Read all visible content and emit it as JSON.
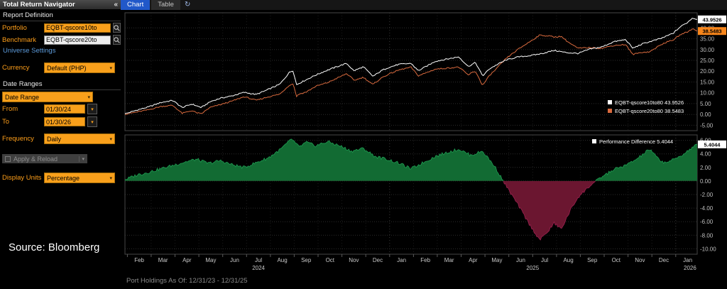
{
  "icons": {
    "collapse": "«",
    "caret_down": "▾",
    "refresh": "↻"
  },
  "sidebar": {
    "title": "Total Return Navigator",
    "report_definition_label": "Report Definition",
    "portfolio_label": "Portfolio",
    "portfolio_value": "EQBT-qscore10to",
    "benchmark_label": "Benchmark",
    "benchmark_value": "EQBT-qscore20to",
    "universe_settings_label": "Universe Settings",
    "currency_label": "Currency",
    "currency_value": "Default (PHP)",
    "date_ranges_label": "Date Ranges",
    "date_range_value": "Date Range",
    "from_label": "From",
    "from_value": "01/30/24",
    "to_label": "To",
    "to_value": "01/30/26",
    "frequency_label": "Frequency",
    "frequency_value": "Daily",
    "apply_reload_label": "Apply & Reload",
    "display_units_label": "Display Units",
    "display_units_value": "Percentage",
    "source_note": "Source: Bloomberg"
  },
  "tabs": {
    "chart": "Chart",
    "table": "Table"
  },
  "statusbar": "Port Holdings As Of: 12/31/23 - 12/31/25",
  "chart_data": {
    "type": "line",
    "x_unit": "months_since_2024-01-30",
    "x_range": [
      0,
      24
    ],
    "month_labels": [
      "Feb",
      "Mar",
      "Apr",
      "May",
      "Jun",
      "Jul",
      "Aug",
      "Sep",
      "Oct",
      "Nov",
      "Dec",
      "Jan",
      "Feb",
      "Mar",
      "Apr",
      "May",
      "Jun",
      "Jul",
      "Aug",
      "Sep",
      "Oct",
      "Nov",
      "Dec",
      "Jan"
    ],
    "year_labels": [
      {
        "label": "2024",
        "t": 5.6
      },
      {
        "label": "2025",
        "t": 17.1
      },
      {
        "label": "2026",
        "t": 23.7
      }
    ],
    "top_panel": {
      "yticks": [
        40,
        35,
        30,
        25,
        20,
        15,
        10,
        5,
        0,
        -5
      ],
      "ylim": [
        -7.5,
        47
      ],
      "series": [
        {
          "name": "EQBT-qscore10to80",
          "color": "#ffffff",
          "badge_color": "#ffffff",
          "last": 43.9526,
          "last_label": "43.9526",
          "anchors": [
            [
              0,
              0.3
            ],
            [
              0.5,
              2
            ],
            [
              1,
              3.5
            ],
            [
              1.5,
              5.5
            ],
            [
              2,
              6.5
            ],
            [
              2.4,
              3.2
            ],
            [
              2.8,
              4.8
            ],
            [
              3.2,
              3.2
            ],
            [
              3.6,
              6
            ],
            [
              4,
              7.5
            ],
            [
              4.5,
              8.6
            ],
            [
              5,
              10.2
            ],
            [
              5.5,
              9.2
            ],
            [
              6,
              11.5
            ],
            [
              6.5,
              14
            ],
            [
              6.9,
              19.5
            ],
            [
              7.05,
              20.3
            ],
            [
              7.2,
              13.8
            ],
            [
              7.5,
              15.5
            ],
            [
              8,
              18.2
            ],
            [
              8.5,
              20.5
            ],
            [
              9,
              22.5
            ],
            [
              9.3,
              23.6
            ],
            [
              9.6,
              20.2
            ],
            [
              10,
              22
            ],
            [
              10.4,
              17.6
            ],
            [
              10.8,
              20.5
            ],
            [
              11,
              21.5
            ],
            [
              11.5,
              23.2
            ],
            [
              12,
              23.6
            ],
            [
              12.3,
              20.2
            ],
            [
              12.7,
              22.6
            ],
            [
              13,
              24.5
            ],
            [
              13.5,
              25.6
            ],
            [
              14,
              26.6
            ],
            [
              14.4,
              22.2
            ],
            [
              14.7,
              24
            ],
            [
              15,
              17.8
            ],
            [
              15.3,
              21.2
            ],
            [
              15.7,
              23.6
            ],
            [
              16,
              25.2
            ],
            [
              16.5,
              26.6
            ],
            [
              17,
              27.2
            ],
            [
              17.5,
              28.2
            ],
            [
              18,
              29.6
            ],
            [
              18.5,
              28.6
            ],
            [
              19,
              28.2
            ],
            [
              19.5,
              30.2
            ],
            [
              20,
              31.2
            ],
            [
              20.5,
              33.6
            ],
            [
              21,
              34.6
            ],
            [
              21.3,
              30.6
            ],
            [
              21.7,
              32.6
            ],
            [
              22,
              33.6
            ],
            [
              22.5,
              35.2
            ],
            [
              23,
              37.6
            ],
            [
              23.3,
              40.6
            ],
            [
              23.6,
              42.6
            ],
            [
              23.8,
              44.6
            ],
            [
              24,
              43.9526
            ]
          ]
        },
        {
          "name": "EQBT-qscore20to80",
          "color": "#d96a3e",
          "badge_color": "#f8861b",
          "last": 38.5483,
          "last_label": "38.5483",
          "derived": "first_minus_difference"
        }
      ]
    },
    "bottom_panel": {
      "name": "Performance Difference",
      "last": 5.4044,
      "last_label": "5.4044",
      "badge_color": "#ffffff",
      "swatch_color": "#ffffff",
      "yticks": [
        6,
        4,
        2,
        0,
        -2,
        -4,
        -6,
        -8,
        -10
      ],
      "ylim": [
        -10.8,
        6.8
      ],
      "positive_color": "#126b33",
      "positive_edge": "#1e9e52",
      "negative_color": "#6b1630",
      "negative_edge": "#9e2050",
      "anchors": [
        [
          0,
          0.2
        ],
        [
          0.5,
          0.9
        ],
        [
          1,
          1.3
        ],
        [
          1.5,
          1.8
        ],
        [
          2,
          2.3
        ],
        [
          2.5,
          2.8
        ],
        [
          3,
          3.2
        ],
        [
          3.5,
          2.6
        ],
        [
          4,
          3
        ],
        [
          4.5,
          2.4
        ],
        [
          5,
          2
        ],
        [
          5.5,
          2.7
        ],
        [
          6,
          3.4
        ],
        [
          6.5,
          4.6
        ],
        [
          7,
          6.2
        ],
        [
          7.3,
          5
        ],
        [
          7.6,
          5.7
        ],
        [
          8,
          5.2
        ],
        [
          8.5,
          5.8
        ],
        [
          9,
          5.2
        ],
        [
          9.5,
          4.4
        ],
        [
          10,
          4.8
        ],
        [
          10.5,
          3.6
        ],
        [
          11,
          3.2
        ],
        [
          11.5,
          2.6
        ],
        [
          12,
          1.8
        ],
        [
          12.5,
          2.7
        ],
        [
          13,
          3.6
        ],
        [
          13.5,
          4.2
        ],
        [
          14,
          4.7
        ],
        [
          14.5,
          3.8
        ],
        [
          15,
          4.4
        ],
        [
          15.5,
          2.2
        ],
        [
          16,
          -0.8
        ],
        [
          16.5,
          -3.6
        ],
        [
          17,
          -6.6
        ],
        [
          17.4,
          -8.7
        ],
        [
          17.8,
          -7.2
        ],
        [
          18,
          -6.2
        ],
        [
          18.3,
          -7.1
        ],
        [
          18.7,
          -4.2
        ],
        [
          19,
          -2.4
        ],
        [
          19.5,
          -0.7
        ],
        [
          20,
          0.6
        ],
        [
          20.5,
          1.7
        ],
        [
          21,
          2.3
        ],
        [
          21.5,
          3.3
        ],
        [
          22,
          4.7
        ],
        [
          22.3,
          3.5
        ],
        [
          22.6,
          2.7
        ],
        [
          23,
          3.1
        ],
        [
          23.4,
          3.9
        ],
        [
          23.7,
          4.7
        ],
        [
          24,
          5.4044
        ]
      ]
    }
  }
}
